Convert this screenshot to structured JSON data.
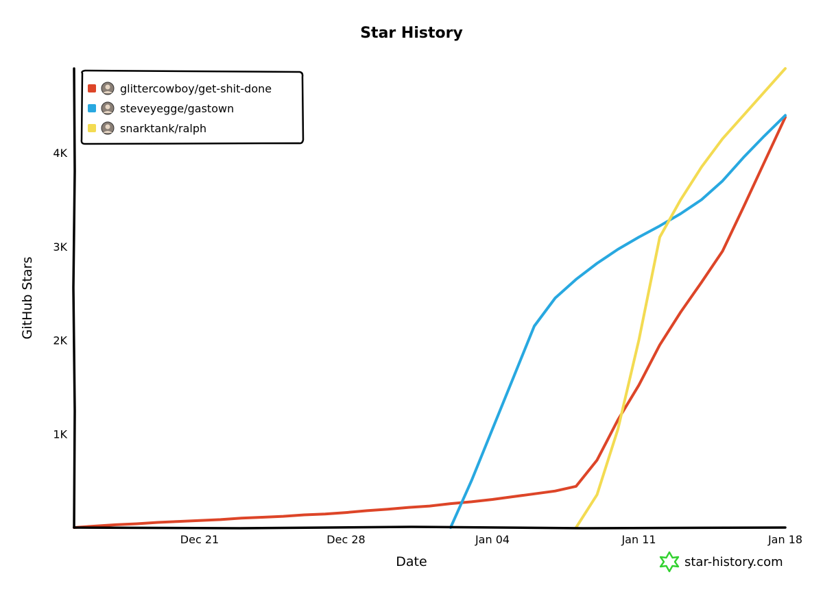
{
  "chart_data": {
    "type": "line",
    "title": "Star History",
    "xlabel": "Date",
    "ylabel": "GitHub Stars",
    "x_ticks": [
      "Dec 21",
      "Dec 28",
      "Jan 04",
      "Jan 11",
      "Jan 18"
    ],
    "y_ticks": [
      "1K",
      "2K",
      "3K",
      "4K"
    ],
    "xlim": [
      "2025-12-15",
      "2026-01-18"
    ],
    "ylim": [
      0,
      4900
    ],
    "grid": false,
    "legend": "top-left",
    "series": [
      {
        "name": "glittercowboy/get-shit-done",
        "color": "#dd4528",
        "icon": "avatar-icon",
        "points": [
          [
            "2025-12-15",
            0
          ],
          [
            "2025-12-16",
            15
          ],
          [
            "2025-12-17",
            30
          ],
          [
            "2025-12-18",
            40
          ],
          [
            "2025-12-19",
            55
          ],
          [
            "2025-12-20",
            65
          ],
          [
            "2025-12-21",
            75
          ],
          [
            "2025-12-22",
            85
          ],
          [
            "2025-12-23",
            100
          ],
          [
            "2025-12-24",
            110
          ],
          [
            "2025-12-25",
            120
          ],
          [
            "2025-12-26",
            135
          ],
          [
            "2025-12-27",
            145
          ],
          [
            "2025-12-28",
            160
          ],
          [
            "2025-12-29",
            180
          ],
          [
            "2025-12-30",
            195
          ],
          [
            "2025-12-31",
            215
          ],
          [
            "2026-01-01",
            230
          ],
          [
            "2026-01-02",
            255
          ],
          [
            "2026-01-03",
            275
          ],
          [
            "2026-01-04",
            300
          ],
          [
            "2026-01-05",
            330
          ],
          [
            "2026-01-06",
            360
          ],
          [
            "2026-01-07",
            390
          ],
          [
            "2026-01-08",
            440
          ],
          [
            "2026-01-09",
            720
          ],
          [
            "2026-01-10",
            1150
          ],
          [
            "2026-01-11",
            1520
          ],
          [
            "2026-01-12",
            1950
          ],
          [
            "2026-01-13",
            2300
          ],
          [
            "2026-01-14",
            2620
          ],
          [
            "2026-01-15",
            2950
          ],
          [
            "2026-01-16",
            3420
          ],
          [
            "2026-01-17",
            3900
          ],
          [
            "2026-01-18",
            4380
          ]
        ]
      },
      {
        "name": "steveyegge/gastown",
        "color": "#28a8e0",
        "icon": "avatar-icon",
        "points": [
          [
            "2026-01-02",
            0
          ],
          [
            "2026-01-03",
            500
          ],
          [
            "2026-01-04",
            1050
          ],
          [
            "2026-01-05",
            1600
          ],
          [
            "2026-01-06",
            2150
          ],
          [
            "2026-01-07",
            2450
          ],
          [
            "2026-01-08",
            2650
          ],
          [
            "2026-01-09",
            2820
          ],
          [
            "2026-01-10",
            2970
          ],
          [
            "2026-01-11",
            3100
          ],
          [
            "2026-01-12",
            3220
          ],
          [
            "2026-01-13",
            3350
          ],
          [
            "2026-01-14",
            3500
          ],
          [
            "2026-01-15",
            3700
          ],
          [
            "2026-01-16",
            3950
          ],
          [
            "2026-01-17",
            4180
          ],
          [
            "2026-01-18",
            4400
          ]
        ]
      },
      {
        "name": "snarktank/ralph",
        "color": "#f3db52",
        "icon": "avatar-icon",
        "points": [
          [
            "2026-01-08",
            0
          ],
          [
            "2026-01-09",
            350
          ],
          [
            "2026-01-10",
            1050
          ],
          [
            "2026-01-11",
            2000
          ],
          [
            "2026-01-12",
            3100
          ],
          [
            "2026-01-13",
            3500
          ],
          [
            "2026-01-14",
            3850
          ],
          [
            "2026-01-15",
            4150
          ],
          [
            "2026-01-16",
            4400
          ],
          [
            "2026-01-17",
            4650
          ],
          [
            "2026-01-18",
            4900
          ]
        ]
      }
    ]
  },
  "branding": {
    "text": "star-history.com",
    "icon": "star-icon",
    "color": "#32d130"
  }
}
